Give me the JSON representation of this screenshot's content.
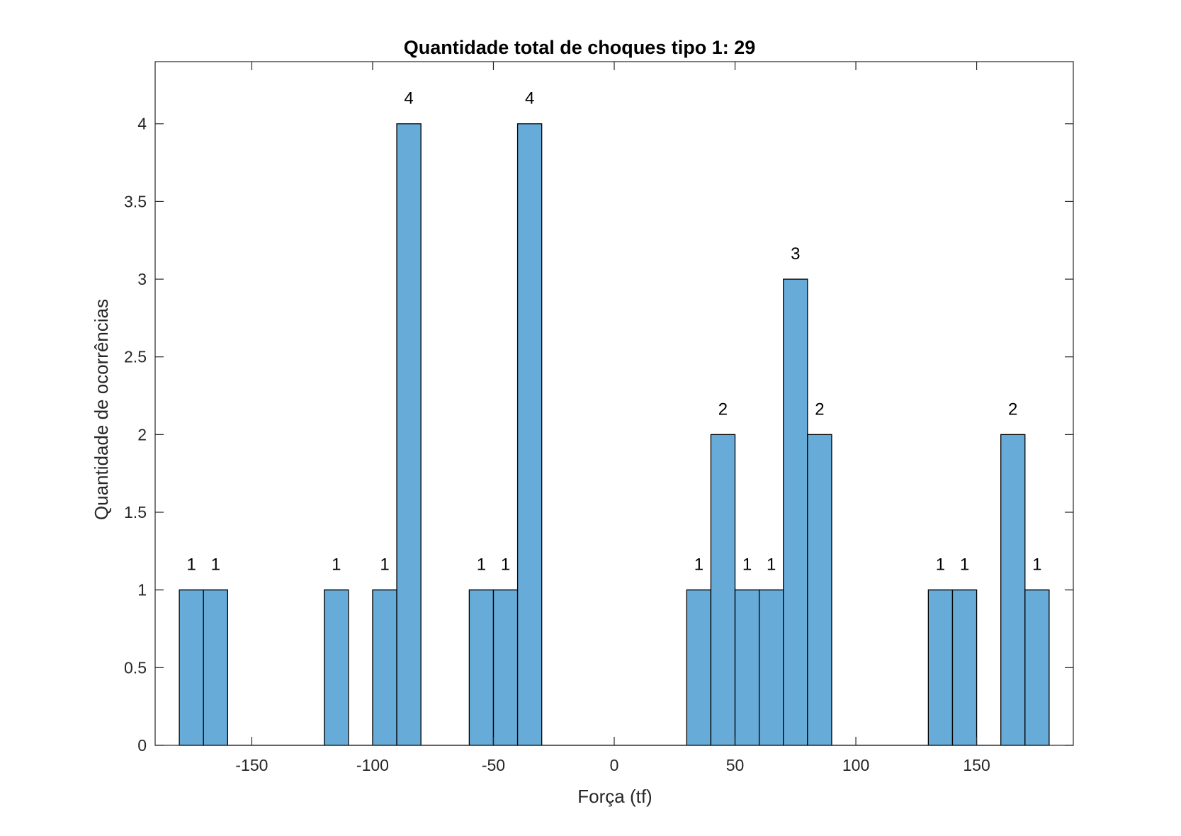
{
  "chart_data": {
    "type": "bar",
    "title": "Quantidade total de choques tipo 1: 29",
    "xlabel": "Força (tf)",
    "ylabel": "Quantidade de ocorrências",
    "xlim": [
      -190,
      190
    ],
    "ylim": [
      0,
      4.4
    ],
    "xticks": [
      -150,
      -100,
      -50,
      0,
      50,
      100,
      150
    ],
    "xtick_labels": [
      "-150",
      "-100",
      "-50",
      "0",
      "50",
      "100",
      "150"
    ],
    "yticks": [
      0,
      0.5,
      1,
      1.5,
      2,
      2.5,
      3,
      3.5,
      4
    ],
    "ytick_labels": [
      "0",
      "0.5",
      "1",
      "1.5",
      "2",
      "2.5",
      "3",
      "3.5",
      "4"
    ],
    "bin_width": 10,
    "bin_edges_start": -180,
    "counts": [
      1,
      1,
      0,
      0,
      0,
      0,
      1,
      0,
      1,
      4,
      0,
      0,
      1,
      1,
      4,
      0,
      0,
      0,
      0,
      0,
      0,
      1,
      2,
      1,
      1,
      3,
      2,
      0,
      0,
      0,
      0,
      1,
      1,
      0,
      2,
      1
    ],
    "bar_color": "#67ABD8",
    "edge_color": "#000000",
    "grid": false
  }
}
